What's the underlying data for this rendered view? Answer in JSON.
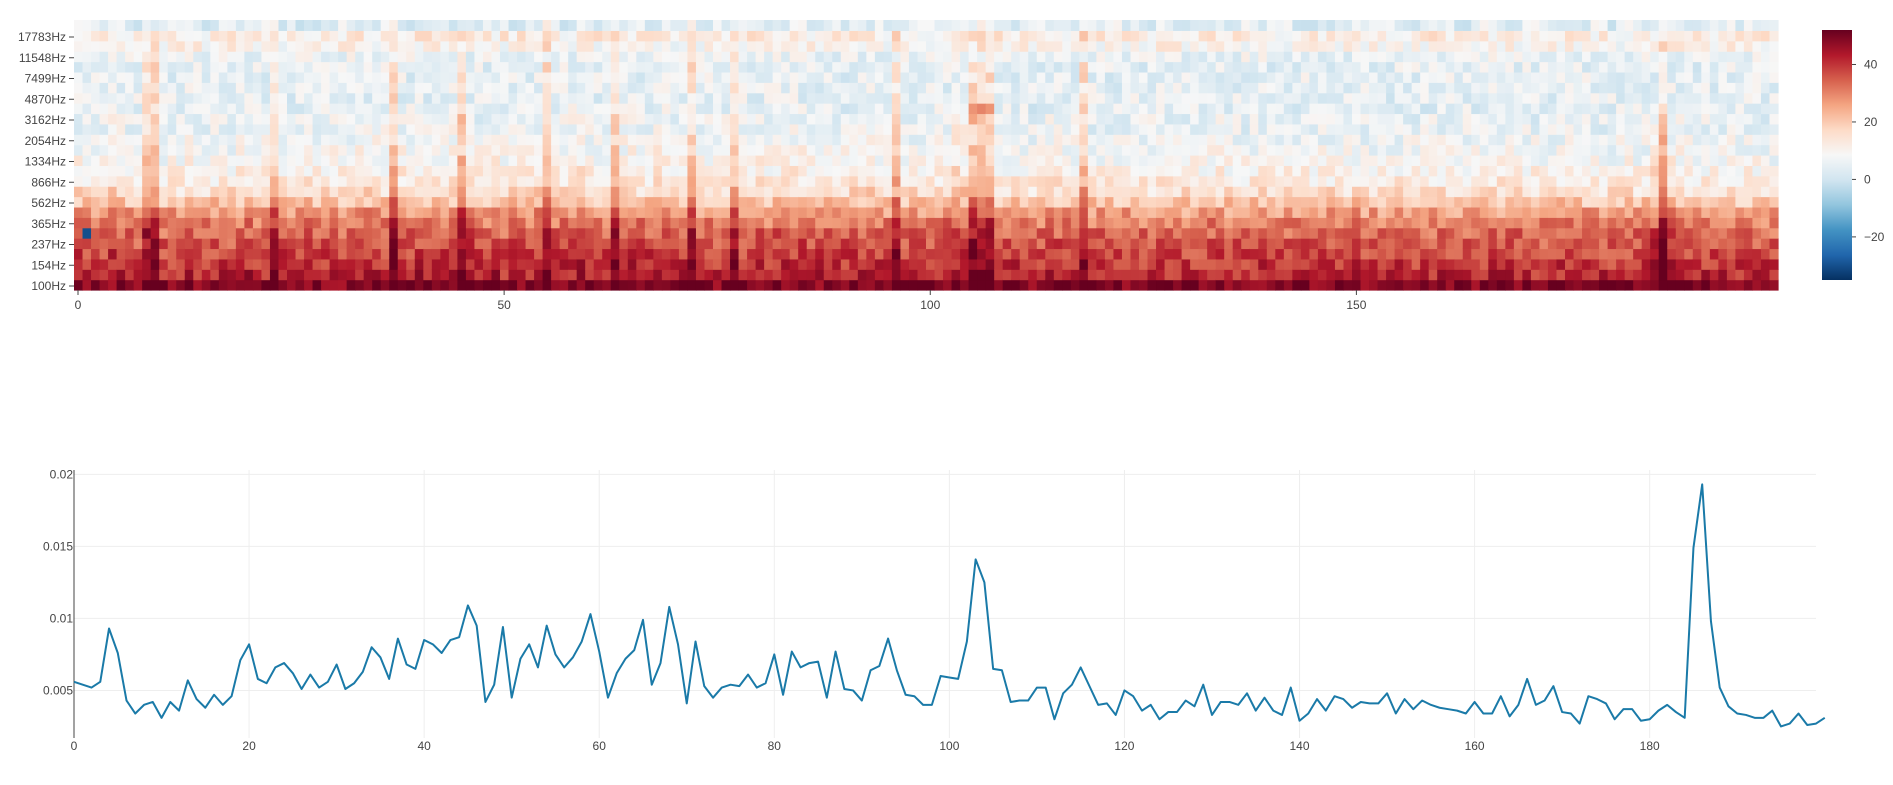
{
  "chart_data": [
    {
      "type": "heatmap",
      "title": "",
      "xlabel": "",
      "ylabel": "",
      "x_range": [
        0,
        199
      ],
      "x_ticks": [
        0,
        50,
        100,
        150
      ],
      "frequency_labels": [
        "100Hz",
        "154Hz",
        "237Hz",
        "365Hz",
        "562Hz",
        "866Hz",
        "1334Hz",
        "2054Hz",
        "3162Hz",
        "4870Hz",
        "7499Hz",
        "11548Hz",
        "17783Hz"
      ],
      "frame_count": 200,
      "bin_count": 26,
      "colorscale": [
        "#053061",
        "#2166ac",
        "#4393c3",
        "#92c5de",
        "#d1e5f0",
        "#f7f7f7",
        "#fddbc7",
        "#f4a582",
        "#d6604d",
        "#b2182b",
        "#67001f"
      ],
      "colorscale_note": "cool-warm diverging",
      "zmin": -35,
      "zmax": 52,
      "colorbar_ticks": [
        -20,
        0,
        20,
        40
      ],
      "band_profile_db": [
        50,
        42,
        40,
        38,
        36,
        34,
        31,
        27,
        21,
        16,
        13,
        11,
        9,
        8,
        7,
        6,
        6,
        5,
        5,
        5,
        5,
        5,
        6,
        10,
        12,
        4
      ],
      "transient_frames": [
        8,
        9,
        23,
        37,
        45,
        55,
        63,
        72,
        77,
        96,
        105,
        106,
        107,
        118,
        186
      ],
      "anomaly_points": [
        {
          "frame": 1,
          "bin": 5,
          "db": -30
        },
        {
          "frame": 105,
          "bin": 17,
          "db": 28
        },
        {
          "frame": 106,
          "bin": 17,
          "db": 30
        },
        {
          "frame": 107,
          "bin": 17,
          "db": 28
        },
        {
          "frame": 105,
          "bin": 16,
          "db": 26
        }
      ]
    },
    {
      "type": "line",
      "title": "",
      "xlabel": "",
      "ylabel": "",
      "xlim": [
        0,
        199
      ],
      "ylim": [
        0.0017,
        0.0203
      ],
      "x_ticks": [
        0,
        20,
        40,
        60,
        80,
        100,
        120,
        140,
        160,
        180
      ],
      "y_ticks": [
        0.005,
        0.01,
        0.015,
        0.02
      ],
      "y_tick_labels": [
        "0.005",
        "0.01",
        "0.015",
        "0.02"
      ],
      "line_color": "#1a7aa8",
      "series": [
        {
          "values": [
            0.0056,
            0.0054,
            0.0052,
            0.0056,
            0.0093,
            0.0076,
            0.0043,
            0.0034,
            0.004,
            0.0042,
            0.0031,
            0.0042,
            0.0036,
            0.0057,
            0.0044,
            0.0038,
            0.0047,
            0.004,
            0.0046,
            0.0071,
            0.0082,
            0.0058,
            0.0055,
            0.0066,
            0.0069,
            0.0062,
            0.0051,
            0.0061,
            0.0052,
            0.0056,
            0.0068,
            0.0051,
            0.0055,
            0.0063,
            0.008,
            0.0073,
            0.0058,
            0.0086,
            0.0068,
            0.0065,
            0.0085,
            0.0082,
            0.0076,
            0.0085,
            0.0087,
            0.0109,
            0.0095,
            0.0042,
            0.0054,
            0.0094,
            0.0045,
            0.0072,
            0.0082,
            0.0066,
            0.0095,
            0.0075,
            0.0066,
            0.0073,
            0.0084,
            0.0103,
            0.0077,
            0.0045,
            0.0062,
            0.0072,
            0.0078,
            0.0099,
            0.0054,
            0.0069,
            0.0108,
            0.0082,
            0.0041,
            0.0084,
            0.0053,
            0.0045,
            0.0052,
            0.0054,
            0.0053,
            0.0061,
            0.0052,
            0.0055,
            0.0075,
            0.0047,
            0.0077,
            0.0066,
            0.0069,
            0.007,
            0.0045,
            0.0077,
            0.0051,
            0.005,
            0.0043,
            0.0064,
            0.0067,
            0.0086,
            0.0064,
            0.0047,
            0.0046,
            0.004,
            0.004,
            0.006,
            0.0059,
            0.0058,
            0.0084,
            0.0141,
            0.0125,
            0.0065,
            0.0064,
            0.0042,
            0.0043,
            0.0043,
            0.0052,
            0.0052,
            0.003,
            0.0048,
            0.0054,
            0.0066,
            0.0053,
            0.004,
            0.0041,
            0.0033,
            0.005,
            0.0046,
            0.0036,
            0.004,
            0.003,
            0.0035,
            0.0035,
            0.0043,
            0.0039,
            0.0054,
            0.0033,
            0.0042,
            0.0042,
            0.004,
            0.0048,
            0.0036,
            0.0045,
            0.0036,
            0.0033,
            0.0052,
            0.0029,
            0.0034,
            0.0044,
            0.0036,
            0.0046,
            0.0044,
            0.0038,
            0.0042,
            0.0041,
            0.0041,
            0.0048,
            0.0034,
            0.0044,
            0.0037,
            0.0043,
            0.004,
            0.0038,
            0.0037,
            0.0036,
            0.0034,
            0.0042,
            0.0034,
            0.0034,
            0.0046,
            0.0032,
            0.004,
            0.0058,
            0.004,
            0.0043,
            0.0053,
            0.0035,
            0.0034,
            0.0027,
            0.0046,
            0.0044,
            0.0041,
            0.003,
            0.0037,
            0.0037,
            0.0029,
            0.003,
            0.0036,
            0.004,
            0.0035,
            0.0031,
            0.0149,
            0.0193,
            0.0098,
            0.0052,
            0.0039,
            0.0034,
            0.0033,
            0.0031,
            0.0031,
            0.0036,
            0.0025,
            0.0027,
            0.0034,
            0.0026,
            0.0027,
            0.0031
          ]
        }
      ]
    }
  ]
}
